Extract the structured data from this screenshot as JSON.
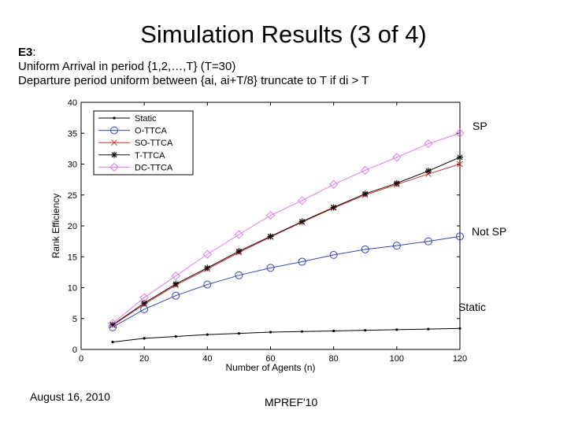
{
  "slide": {
    "title": "Simulation Results (3 of 4)",
    "label_prefix": "E3",
    "label_suffix": ":",
    "line1": "Uniform Arrival in period {1,2,…,T} (T=30)",
    "line2": "Departure period uniform between {ai, ai+T/8} truncate to T if di > T",
    "annotations": {
      "sp": "SP",
      "not_sp": "Not SP",
      "static": "Static"
    },
    "footer_date": "August 16, 2010",
    "footer_conf": "MPREF'10"
  },
  "colors": {
    "Static": "#000000",
    "O-TTCA": "#3344bb",
    "SO-TTCA": "#cc3333",
    "T-TTCA": "#111111",
    "DC-TTCA": "#e07be8"
  },
  "chart_data": {
    "type": "line",
    "xlabel": "Number of Agents (n)",
    "ylabel": "Rank Efficiency",
    "xlim": [
      0,
      120
    ],
    "ylim": [
      0,
      40
    ],
    "xticks": [
      0,
      20,
      40,
      60,
      80,
      100,
      120
    ],
    "yticks": [
      0,
      5,
      10,
      15,
      20,
      25,
      30,
      35,
      40
    ],
    "grid": false,
    "legend_position": "top-left",
    "x": [
      10,
      20,
      30,
      40,
      50,
      60,
      70,
      80,
      90,
      100,
      110,
      120
    ],
    "series": [
      {
        "name": "Static",
        "marker": "dot",
        "values": [
          1.2,
          1.8,
          2.1,
          2.4,
          2.6,
          2.8,
          2.9,
          3.0,
          3.1,
          3.2,
          3.3,
          3.4
        ]
      },
      {
        "name": "O-TTCA",
        "marker": "circle",
        "values": [
          3.6,
          6.5,
          8.7,
          10.5,
          12.0,
          13.2,
          14.2,
          15.3,
          16.2,
          16.8,
          17.5,
          18.3
        ]
      },
      {
        "name": "SO-TTCA",
        "marker": "x",
        "values": [
          3.9,
          7.3,
          10.4,
          13.0,
          15.7,
          18.2,
          20.6,
          22.9,
          25.0,
          26.7,
          28.4,
          30.0
        ]
      },
      {
        "name": "T-TTCA",
        "marker": "star",
        "values": [
          4.0,
          7.5,
          10.6,
          13.2,
          15.9,
          18.3,
          20.7,
          23.0,
          25.2,
          26.9,
          28.9,
          31.1
        ]
      },
      {
        "name": "DC-TTCA",
        "marker": "diamond",
        "values": [
          4.2,
          8.4,
          11.9,
          15.4,
          18.6,
          21.7,
          24.1,
          26.7,
          29.0,
          31.1,
          33.3,
          35.0
        ]
      }
    ]
  }
}
